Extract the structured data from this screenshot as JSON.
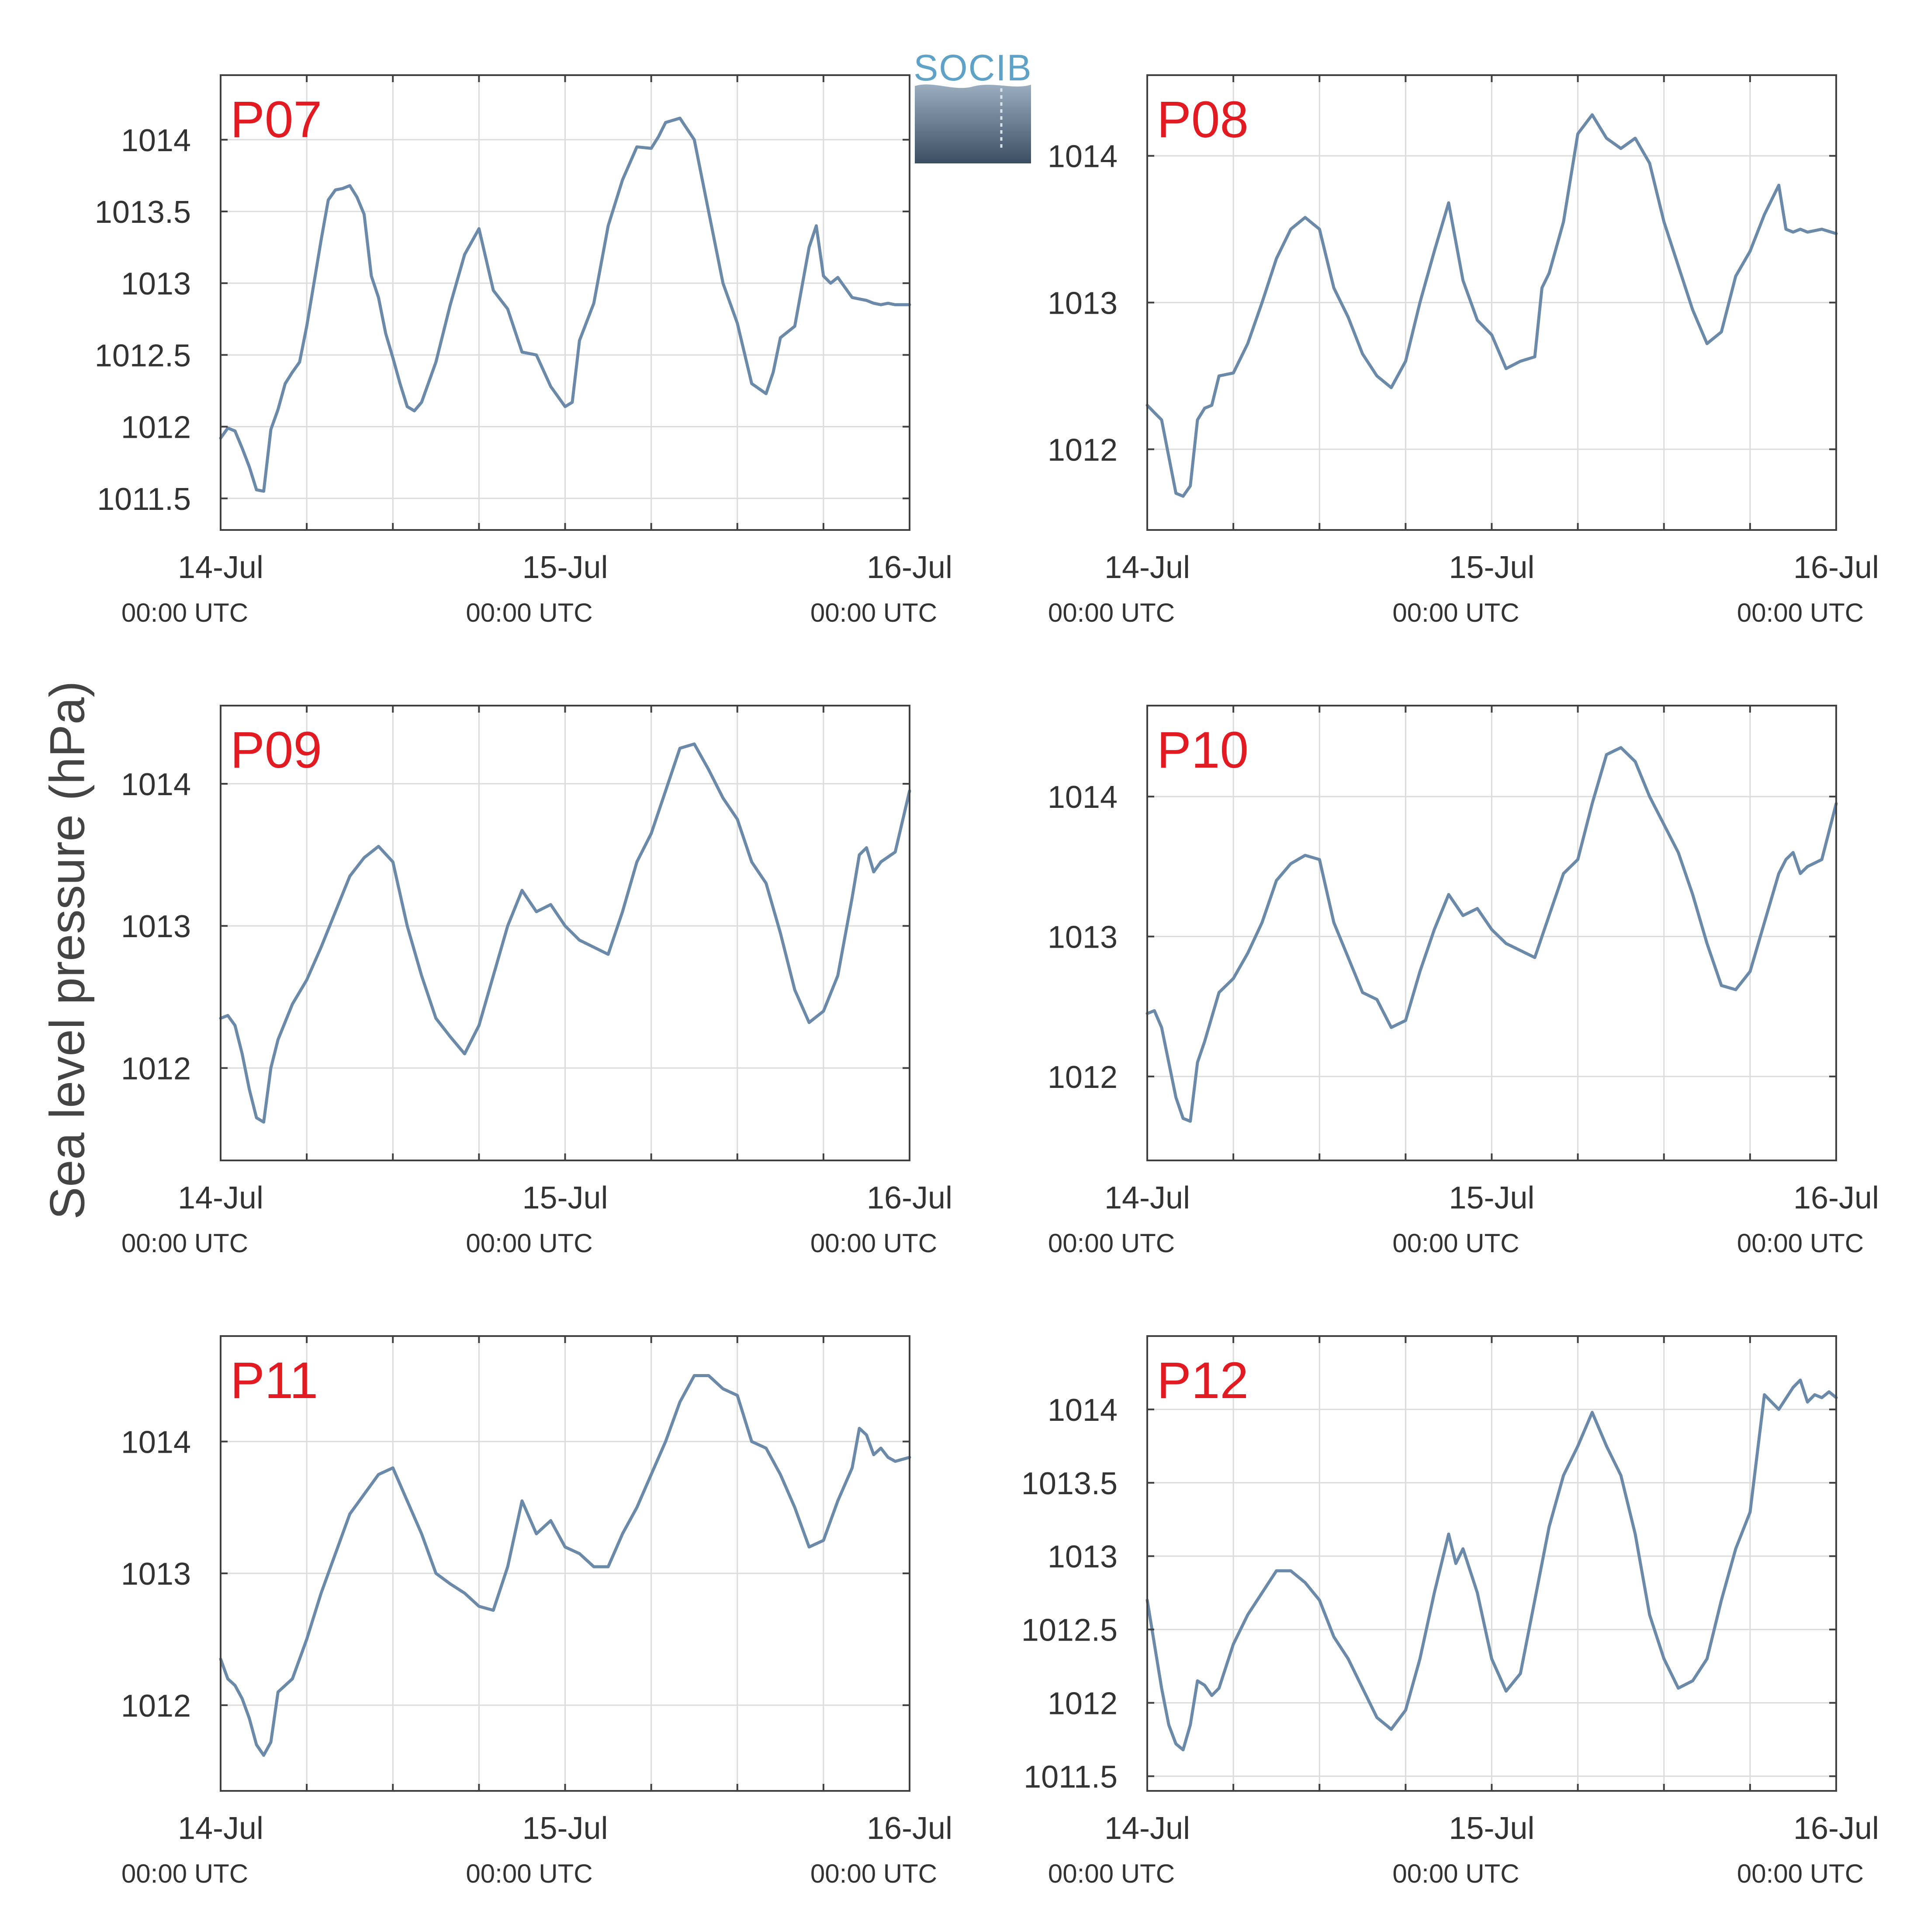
{
  "figure": {
    "ylabel": "Sea level pressure (hPa)",
    "logo_text": "SOCIB",
    "line_color": "#6b8aaa",
    "label_color": "#e21b23",
    "axis_color": "#404040",
    "grid_color": "#dcdcdc"
  },
  "chart_data": [
    {
      "type": "line",
      "title": "P07",
      "ylim": [
        1011.28,
        1014.45
      ],
      "yticks": [
        1011.5,
        1012,
        1012.5,
        1013,
        1013.5,
        1014
      ],
      "ytick_labels": [
        "1011.5",
        "1012",
        "1012.5",
        "1013",
        "1013.5",
        "1014"
      ],
      "xlim": [
        0,
        48
      ],
      "xticks": [
        0,
        24,
        48
      ],
      "xtick_labels": [
        [
          "14-Jul",
          "00:00 UTC"
        ],
        [
          "15-Jul",
          "00:00 UTC"
        ],
        [
          "16-Jul",
          "00:00 UTC"
        ]
      ],
      "grid": true,
      "x": [
        0,
        0.5,
        1,
        1.5,
        2,
        2.5,
        3,
        3.5,
        4,
        4.5,
        5,
        5.5,
        6,
        6.5,
        7,
        7.5,
        8,
        8.5,
        9,
        9.5,
        10,
        10.5,
        11,
        11.5,
        12,
        12.5,
        13,
        13.5,
        14,
        15,
        16,
        17,
        18,
        19,
        20,
        21,
        22,
        23,
        24,
        24.5,
        25,
        26,
        27,
        28,
        29,
        30,
        30.5,
        31,
        32,
        33,
        33.5,
        34,
        35,
        36,
        37,
        38,
        38.5,
        39,
        40,
        41,
        41.5,
        42,
        42.5,
        43,
        44,
        44.5,
        45,
        45.5,
        46,
        46.5,
        47,
        48
      ],
      "y": [
        1011.92,
        1011.99,
        1011.97,
        1011.85,
        1011.72,
        1011.56,
        1011.55,
        1011.98,
        1012.12,
        1012.3,
        1012.38,
        1012.45,
        1012.7,
        1013.0,
        1013.3,
        1013.58,
        1013.65,
        1013.66,
        1013.68,
        1013.6,
        1013.48,
        1013.05,
        1012.9,
        1012.65,
        1012.48,
        1012.3,
        1012.14,
        1012.11,
        1012.17,
        1012.45,
        1012.85,
        1013.2,
        1013.38,
        1012.95,
        1012.82,
        1012.52,
        1012.5,
        1012.28,
        1012.14,
        1012.17,
        1012.6,
        1012.86,
        1013.4,
        1013.72,
        1013.95,
        1013.94,
        1014.02,
        1014.12,
        1014.15,
        1014.0,
        1013.75,
        1013.5,
        1013.0,
        1012.72,
        1012.3,
        1012.23,
        1012.38,
        1012.62,
        1012.7,
        1013.25,
        1013.4,
        1013.05,
        1013.0,
        1013.04,
        1012.9,
        1012.89,
        1012.88,
        1012.86,
        1012.85,
        1012.86,
        1012.85,
        1012.85
      ]
    },
    {
      "type": "line",
      "title": "P08",
      "ylim": [
        1011.45,
        1014.55
      ],
      "yticks": [
        1012,
        1013,
        1014
      ],
      "ytick_labels": [
        "1012",
        "1013",
        "1014"
      ],
      "xlim": [
        0,
        48
      ],
      "xticks": [
        0,
        24,
        48
      ],
      "xtick_labels": [
        [
          "14-Jul",
          "00:00 UTC"
        ],
        [
          "15-Jul",
          "00:00 UTC"
        ],
        [
          "16-Jul",
          "00:00 UTC"
        ]
      ],
      "grid": true,
      "x": [
        0,
        0.5,
        1,
        1.5,
        2,
        2.5,
        3,
        3.5,
        4,
        4.5,
        5,
        6,
        7,
        8,
        9,
        10,
        11,
        12,
        13,
        14,
        15,
        16,
        17,
        18,
        19,
        20,
        21,
        22,
        23,
        24,
        25,
        26,
        27,
        27.5,
        28,
        29,
        30,
        31,
        32,
        33,
        34,
        35,
        36,
        37,
        38,
        39,
        40,
        41,
        42,
        43,
        44,
        44.5,
        45,
        45.5,
        46,
        47,
        48
      ],
      "y": [
        1012.3,
        1012.25,
        1012.2,
        1011.95,
        1011.7,
        1011.68,
        1011.75,
        1012.2,
        1012.28,
        1012.3,
        1012.5,
        1012.52,
        1012.72,
        1013.0,
        1013.3,
        1013.5,
        1013.58,
        1013.5,
        1013.1,
        1012.9,
        1012.65,
        1012.5,
        1012.42,
        1012.6,
        1013.0,
        1013.35,
        1013.68,
        1013.15,
        1012.88,
        1012.78,
        1012.55,
        1012.6,
        1012.63,
        1013.1,
        1013.2,
        1013.55,
        1014.15,
        1014.28,
        1014.12,
        1014.05,
        1014.12,
        1013.95,
        1013.55,
        1013.25,
        1012.95,
        1012.72,
        1012.8,
        1013.18,
        1013.35,
        1013.6,
        1013.8,
        1013.5,
        1013.48,
        1013.5,
        1013.48,
        1013.5,
        1013.47
      ]
    },
    {
      "type": "line",
      "title": "P09",
      "ylim": [
        1011.35,
        1014.55
      ],
      "yticks": [
        1012,
        1013,
        1014
      ],
      "ytick_labels": [
        "1012",
        "1013",
        "1014"
      ],
      "xlim": [
        0,
        48
      ],
      "xticks": [
        0,
        24,
        48
      ],
      "xtick_labels": [
        [
          "14-Jul",
          "00:00 UTC"
        ],
        [
          "15-Jul",
          "00:00 UTC"
        ],
        [
          "16-Jul",
          "00:00 UTC"
        ]
      ],
      "grid": true,
      "x": [
        0,
        0.5,
        1,
        1.5,
        2,
        2.5,
        3,
        3.5,
        4,
        5,
        6,
        7,
        8,
        9,
        10,
        11,
        12,
        13,
        14,
        15,
        16,
        17,
        18,
        19,
        20,
        21,
        22,
        23,
        24,
        25,
        26,
        27,
        28,
        29,
        30,
        31,
        32,
        33,
        34,
        35,
        36,
        37,
        38,
        39,
        40,
        41,
        42,
        43,
        44,
        44.5,
        45,
        45.5,
        46,
        47,
        48
      ],
      "y": [
        1012.35,
        1012.37,
        1012.3,
        1012.1,
        1011.85,
        1011.65,
        1011.62,
        1012.0,
        1012.2,
        1012.45,
        1012.62,
        1012.85,
        1013.1,
        1013.35,
        1013.48,
        1013.56,
        1013.45,
        1013.0,
        1012.65,
        1012.35,
        1012.22,
        1012.1,
        1012.3,
        1012.65,
        1013.0,
        1013.25,
        1013.1,
        1013.15,
        1013.0,
        1012.9,
        1012.85,
        1012.8,
        1013.1,
        1013.45,
        1013.65,
        1013.95,
        1014.25,
        1014.28,
        1014.1,
        1013.9,
        1013.75,
        1013.45,
        1013.3,
        1012.95,
        1012.55,
        1012.32,
        1012.4,
        1012.65,
        1013.2,
        1013.5,
        1013.55,
        1013.38,
        1013.45,
        1013.52,
        1013.95
      ]
    },
    {
      "type": "line",
      "title": "P10",
      "ylim": [
        1011.4,
        1014.65
      ],
      "yticks": [
        1012,
        1013,
        1014
      ],
      "ytick_labels": [
        "1012",
        "1013",
        "1014"
      ],
      "xlim": [
        0,
        48
      ],
      "xticks": [
        0,
        24,
        48
      ],
      "xtick_labels": [
        [
          "14-Jul",
          "00:00 UTC"
        ],
        [
          "15-Jul",
          "00:00 UTC"
        ],
        [
          "16-Jul",
          "00:00 UTC"
        ]
      ],
      "grid": true,
      "x": [
        0,
        0.5,
        1,
        1.5,
        2,
        2.5,
        3,
        3.5,
        4,
        5,
        6,
        7,
        8,
        9,
        10,
        11,
        12,
        13,
        14,
        15,
        16,
        17,
        18,
        19,
        20,
        21,
        22,
        23,
        24,
        25,
        26,
        27,
        28,
        29,
        30,
        31,
        32,
        33,
        34,
        35,
        36,
        37,
        38,
        39,
        40,
        41,
        42,
        43,
        44,
        44.5,
        45,
        45.5,
        46,
        47,
        48
      ],
      "y": [
        1012.45,
        1012.47,
        1012.35,
        1012.1,
        1011.85,
        1011.7,
        1011.68,
        1012.1,
        1012.25,
        1012.6,
        1012.7,
        1012.88,
        1013.1,
        1013.4,
        1013.52,
        1013.58,
        1013.55,
        1013.1,
        1012.85,
        1012.6,
        1012.55,
        1012.35,
        1012.4,
        1012.75,
        1013.05,
        1013.3,
        1013.15,
        1013.2,
        1013.05,
        1012.95,
        1012.9,
        1012.85,
        1013.15,
        1013.45,
        1013.55,
        1013.95,
        1014.3,
        1014.35,
        1014.25,
        1014.0,
        1013.8,
        1013.6,
        1013.3,
        1012.95,
        1012.65,
        1012.62,
        1012.75,
        1013.1,
        1013.45,
        1013.55,
        1013.6,
        1013.45,
        1013.5,
        1013.55,
        1013.95
      ]
    },
    {
      "type": "line",
      "title": "P11",
      "ylim": [
        1011.35,
        1014.8
      ],
      "yticks": [
        1012,
        1013,
        1014
      ],
      "ytick_labels": [
        "1012",
        "1013",
        "1014"
      ],
      "xlim": [
        0,
        48
      ],
      "xticks": [
        0,
        24,
        48
      ],
      "xtick_labels": [
        [
          "14-Jul",
          "00:00 UTC"
        ],
        [
          "15-Jul",
          "00:00 UTC"
        ],
        [
          "16-Jul",
          "00:00 UTC"
        ]
      ],
      "grid": true,
      "x": [
        0,
        0.5,
        1,
        1.5,
        2,
        2.5,
        3,
        3.5,
        4,
        5,
        6,
        7,
        8,
        9,
        10,
        11,
        12,
        13,
        14,
        15,
        16,
        17,
        18,
        19,
        20,
        21,
        22,
        23,
        24,
        25,
        26,
        27,
        28,
        29,
        30,
        31,
        32,
        33,
        34,
        35,
        36,
        37,
        38,
        39,
        40,
        41,
        42,
        43,
        44,
        44.5,
        45,
        45.5,
        46,
        46.5,
        47,
        48
      ],
      "y": [
        1012.35,
        1012.2,
        1012.15,
        1012.05,
        1011.9,
        1011.7,
        1011.62,
        1011.72,
        1012.1,
        1012.2,
        1012.5,
        1012.85,
        1013.15,
        1013.45,
        1013.6,
        1013.75,
        1013.8,
        1013.55,
        1013.3,
        1013.0,
        1012.92,
        1012.85,
        1012.75,
        1012.72,
        1013.05,
        1013.55,
        1013.3,
        1013.4,
        1013.2,
        1013.15,
        1013.05,
        1013.05,
        1013.3,
        1013.5,
        1013.75,
        1014.0,
        1014.3,
        1014.5,
        1014.5,
        1014.4,
        1014.35,
        1014.0,
        1013.95,
        1013.75,
        1013.5,
        1013.2,
        1013.25,
        1013.55,
        1013.8,
        1014.1,
        1014.05,
        1013.9,
        1013.95,
        1013.88,
        1013.85,
        1013.88
      ]
    },
    {
      "type": "line",
      "title": "P12",
      "ylim": [
        1011.4,
        1014.5
      ],
      "yticks": [
        1011.5,
        1012,
        1012.5,
        1013,
        1013.5,
        1014
      ],
      "ytick_labels": [
        "1011.5",
        "1012",
        "1012.5",
        "1013",
        "1013.5",
        "1014"
      ],
      "xlim": [
        0,
        48
      ],
      "xticks": [
        0,
        24,
        48
      ],
      "xtick_labels": [
        [
          "14-Jul",
          "00:00 UTC"
        ],
        [
          "15-Jul",
          "00:00 UTC"
        ],
        [
          "16-Jul",
          "00:00 UTC"
        ]
      ],
      "grid": true,
      "x": [
        0,
        0.5,
        1,
        1.5,
        2,
        2.5,
        3,
        3.5,
        4,
        4.5,
        5,
        6,
        7,
        8,
        9,
        10,
        11,
        12,
        13,
        14,
        15,
        16,
        17,
        18,
        19,
        20,
        21,
        21.5,
        22,
        23,
        24,
        25,
        26,
        27,
        28,
        29,
        30,
        31,
        32,
        33,
        34,
        35,
        36,
        37,
        38,
        39,
        40,
        41,
        42,
        43,
        44,
        45,
        45.5,
        46,
        46.5,
        47,
        47.5,
        48
      ],
      "y": [
        1012.7,
        1012.4,
        1012.1,
        1011.85,
        1011.72,
        1011.68,
        1011.85,
        1012.15,
        1012.12,
        1012.05,
        1012.1,
        1012.4,
        1012.6,
        1012.75,
        1012.9,
        1012.9,
        1012.82,
        1012.7,
        1012.45,
        1012.3,
        1012.1,
        1011.9,
        1011.82,
        1011.95,
        1012.3,
        1012.75,
        1013.15,
        1012.95,
        1013.05,
        1012.75,
        1012.3,
        1012.08,
        1012.2,
        1012.7,
        1013.2,
        1013.55,
        1013.75,
        1013.98,
        1013.75,
        1013.55,
        1013.15,
        1012.6,
        1012.3,
        1012.1,
        1012.15,
        1012.3,
        1012.7,
        1013.05,
        1013.3,
        1014.1,
        1014.0,
        1014.15,
        1014.2,
        1014.05,
        1014.1,
        1014.08,
        1014.12,
        1014.08
      ]
    }
  ]
}
